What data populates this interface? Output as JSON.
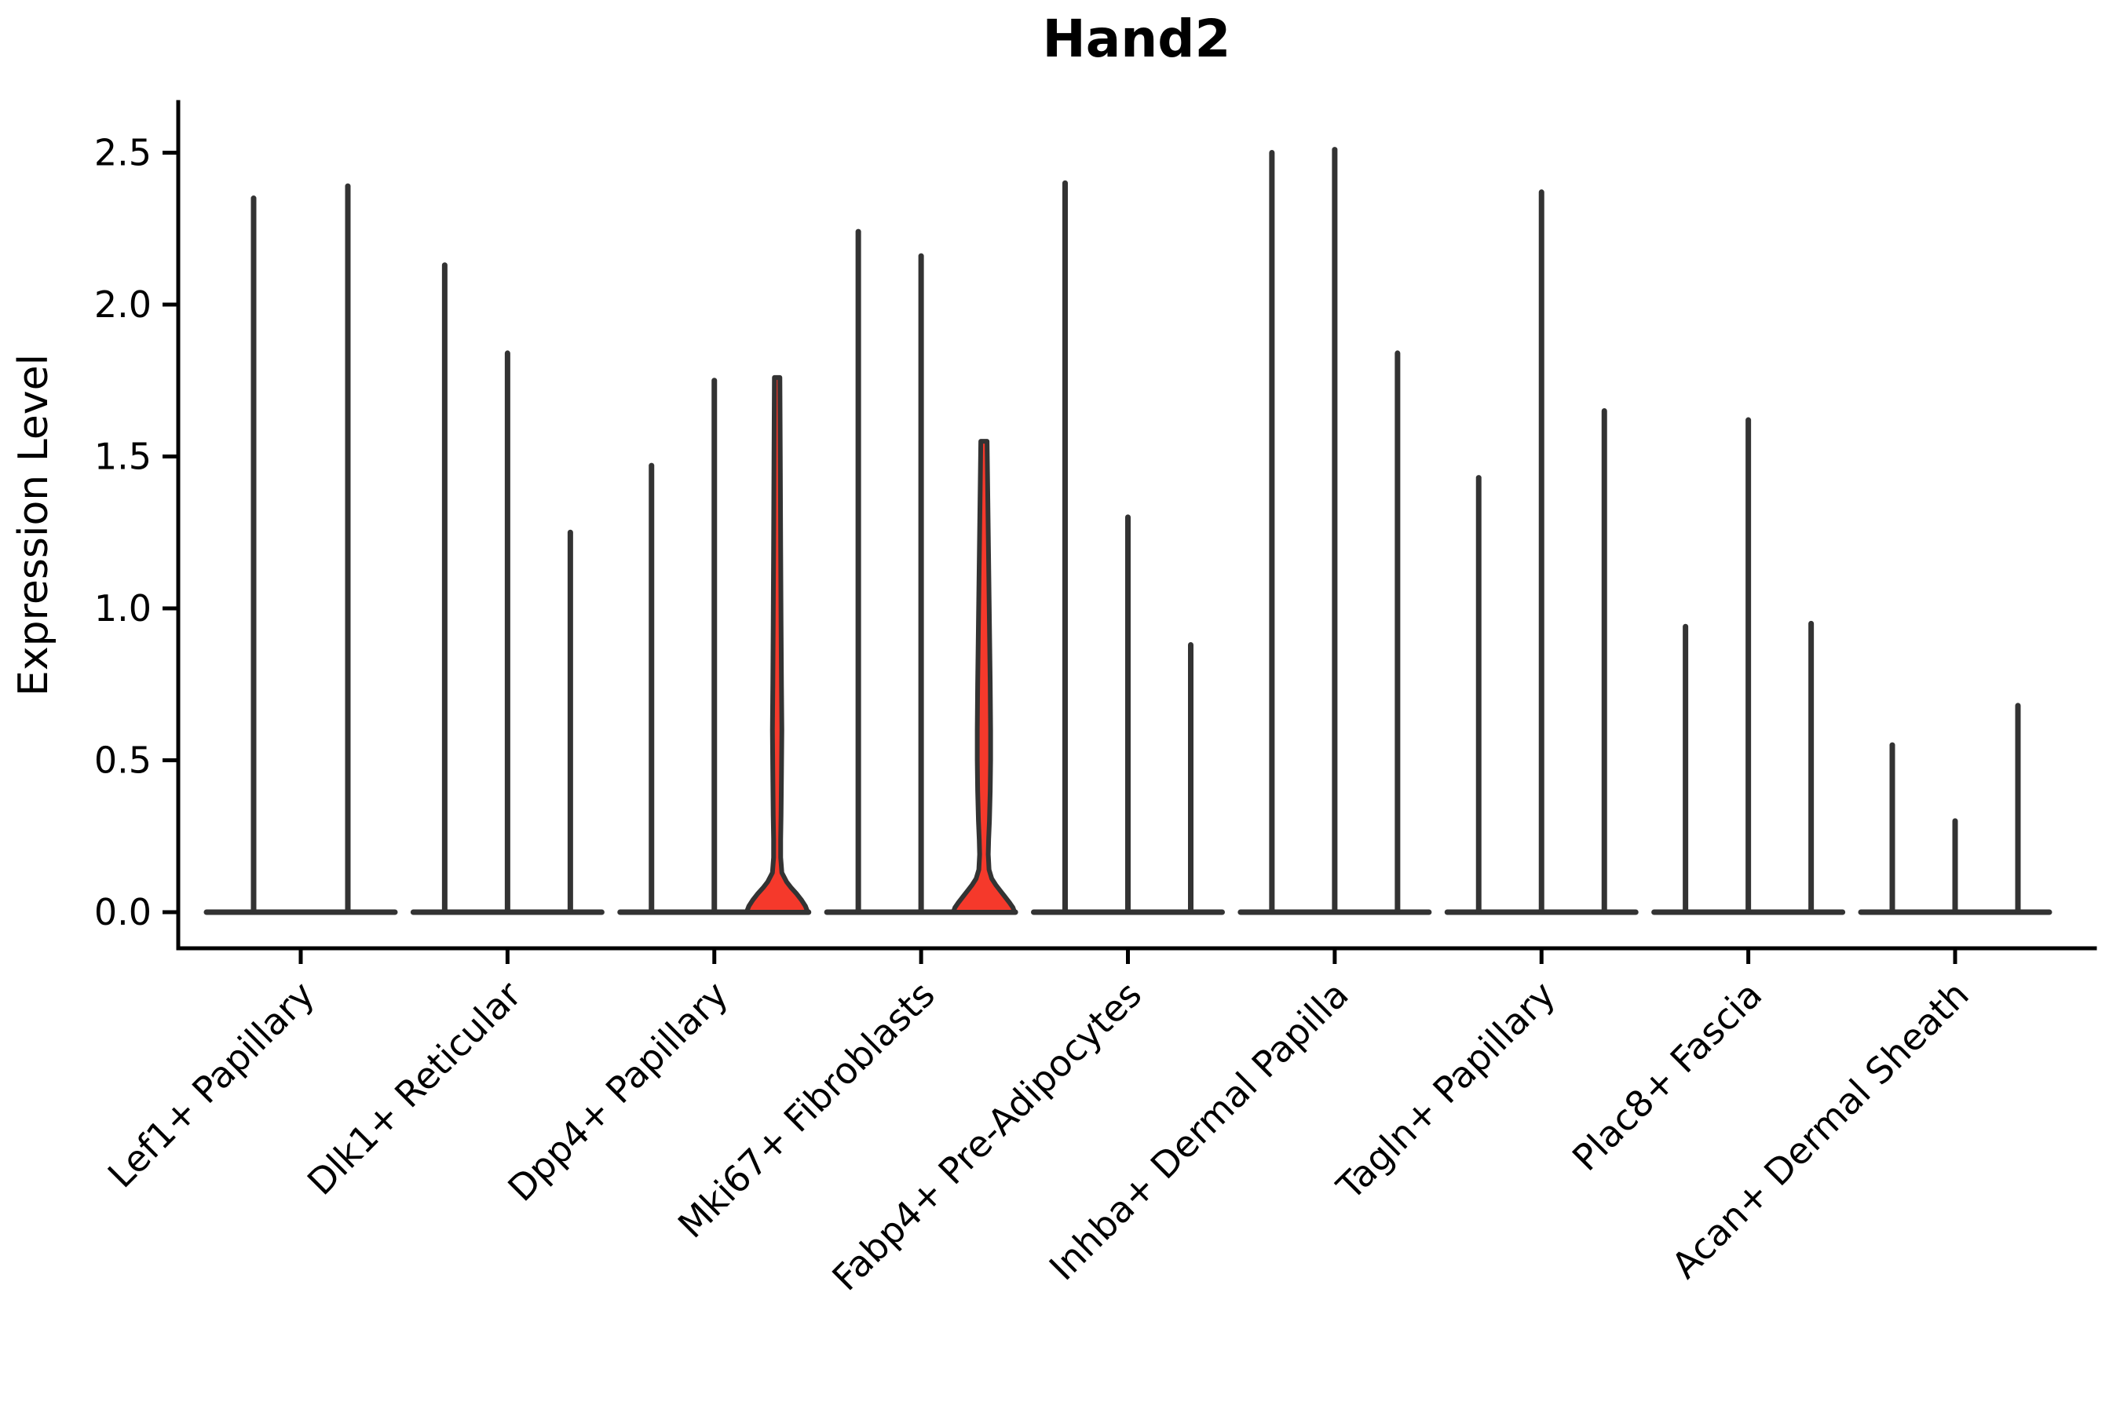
{
  "chart_data": {
    "type": "violin",
    "title": "Hand2",
    "xlabel": "",
    "ylabel": "Expression Level",
    "yticks": [
      0.0,
      0.5,
      1.0,
      1.5,
      2.0,
      2.5
    ],
    "ylim": [
      0,
      2.66
    ],
    "grid": false,
    "legend": "none",
    "colors": {
      "violin_fill": "#f5392b",
      "violin_outline": "#333333",
      "axis": "#000000",
      "background": "#ffffff"
    },
    "categories": [
      "Lef1+ Papillary",
      "Dlk1+ Reticular",
      "Dpp4+ Papillary",
      "Mki67+ Fibroblasts",
      "Fabp4+ Pre-Adipocytes",
      "Inhba+ Dermal Papilla",
      "Tagln+ Papillary",
      "Plac8+ Fascia",
      "Acan+ Dermal Sheath"
    ],
    "groups": [
      {
        "label": "Lef1+ Papillary",
        "violins": [
          {
            "max": 2.35,
            "filled": false
          },
          {
            "max": 2.39,
            "filled": false
          }
        ]
      },
      {
        "label": "Dlk1+ Reticular",
        "violins": [
          {
            "max": 2.13,
            "filled": false
          },
          {
            "max": 1.84,
            "filled": false
          },
          {
            "max": 1.25,
            "filled": false
          }
        ]
      },
      {
        "label": "Dpp4+ Papillary",
        "violins": [
          {
            "max": 1.47,
            "filled": false
          },
          {
            "max": 1.75,
            "filled": false
          },
          {
            "max": 1.76,
            "filled": true,
            "profile": [
              [
                1.76,
                3.5
              ],
              [
                1.5,
                4
              ],
              [
                1.2,
                4.5
              ],
              [
                0.95,
                5
              ],
              [
                0.75,
                5.5
              ],
              [
                0.6,
                6
              ],
              [
                0.45,
                5.5
              ],
              [
                0.32,
                5
              ],
              [
                0.24,
                4.5
              ],
              [
                0.18,
                4.5
              ],
              [
                0.13,
                6
              ],
              [
                0.1,
                12
              ],
              [
                0.08,
                18
              ],
              [
                0.06,
                25
              ],
              [
                0.04,
                31
              ],
              [
                0.02,
                36
              ],
              [
                0.0,
                39
              ]
            ]
          }
        ]
      },
      {
        "label": "Mki67+ Fibroblasts",
        "violins": [
          {
            "max": 2.24,
            "filled": false
          },
          {
            "max": 2.16,
            "filled": false
          },
          {
            "max": 1.55,
            "filled": true,
            "profile": [
              [
                1.55,
                4
              ],
              [
                1.35,
                5
              ],
              [
                1.15,
                6
              ],
              [
                0.95,
                7
              ],
              [
                0.75,
                8
              ],
              [
                0.6,
                8.5
              ],
              [
                0.5,
                8.5
              ],
              [
                0.4,
                8
              ],
              [
                0.3,
                7
              ],
              [
                0.24,
                6
              ],
              [
                0.19,
                5.5
              ],
              [
                0.14,
                6.5
              ],
              [
                0.11,
                10
              ],
              [
                0.09,
                15
              ],
              [
                0.07,
                21
              ],
              [
                0.05,
                27
              ],
              [
                0.03,
                33
              ],
              [
                0.015,
                37
              ],
              [
                0.0,
                39
              ]
            ]
          }
        ]
      },
      {
        "label": "Fabp4+ Pre-Adipocytes",
        "violins": [
          {
            "max": 2.4,
            "filled": false
          },
          {
            "max": 1.3,
            "filled": false
          },
          {
            "max": 0.88,
            "filled": false
          }
        ]
      },
      {
        "label": "Inhba+ Dermal Papilla",
        "violins": [
          {
            "max": 2.5,
            "filled": false
          },
          {
            "max": 2.51,
            "filled": false
          },
          {
            "max": 1.84,
            "filled": false
          }
        ]
      },
      {
        "label": "Tagln+ Papillary",
        "violins": [
          {
            "max": 1.43,
            "filled": false
          },
          {
            "max": 2.37,
            "filled": false
          },
          {
            "max": 1.65,
            "filled": false
          }
        ]
      },
      {
        "label": "Plac8+ Fascia",
        "violins": [
          {
            "max": 0.94,
            "filled": false
          },
          {
            "max": 1.62,
            "filled": false
          },
          {
            "max": 0.95,
            "filled": false
          }
        ]
      },
      {
        "label": "Acan+ Dermal Sheath",
        "violins": [
          {
            "max": 0.55,
            "filled": false
          },
          {
            "max": 0.3,
            "filled": false
          },
          {
            "max": 0.68,
            "filled": false
          }
        ]
      }
    ]
  }
}
